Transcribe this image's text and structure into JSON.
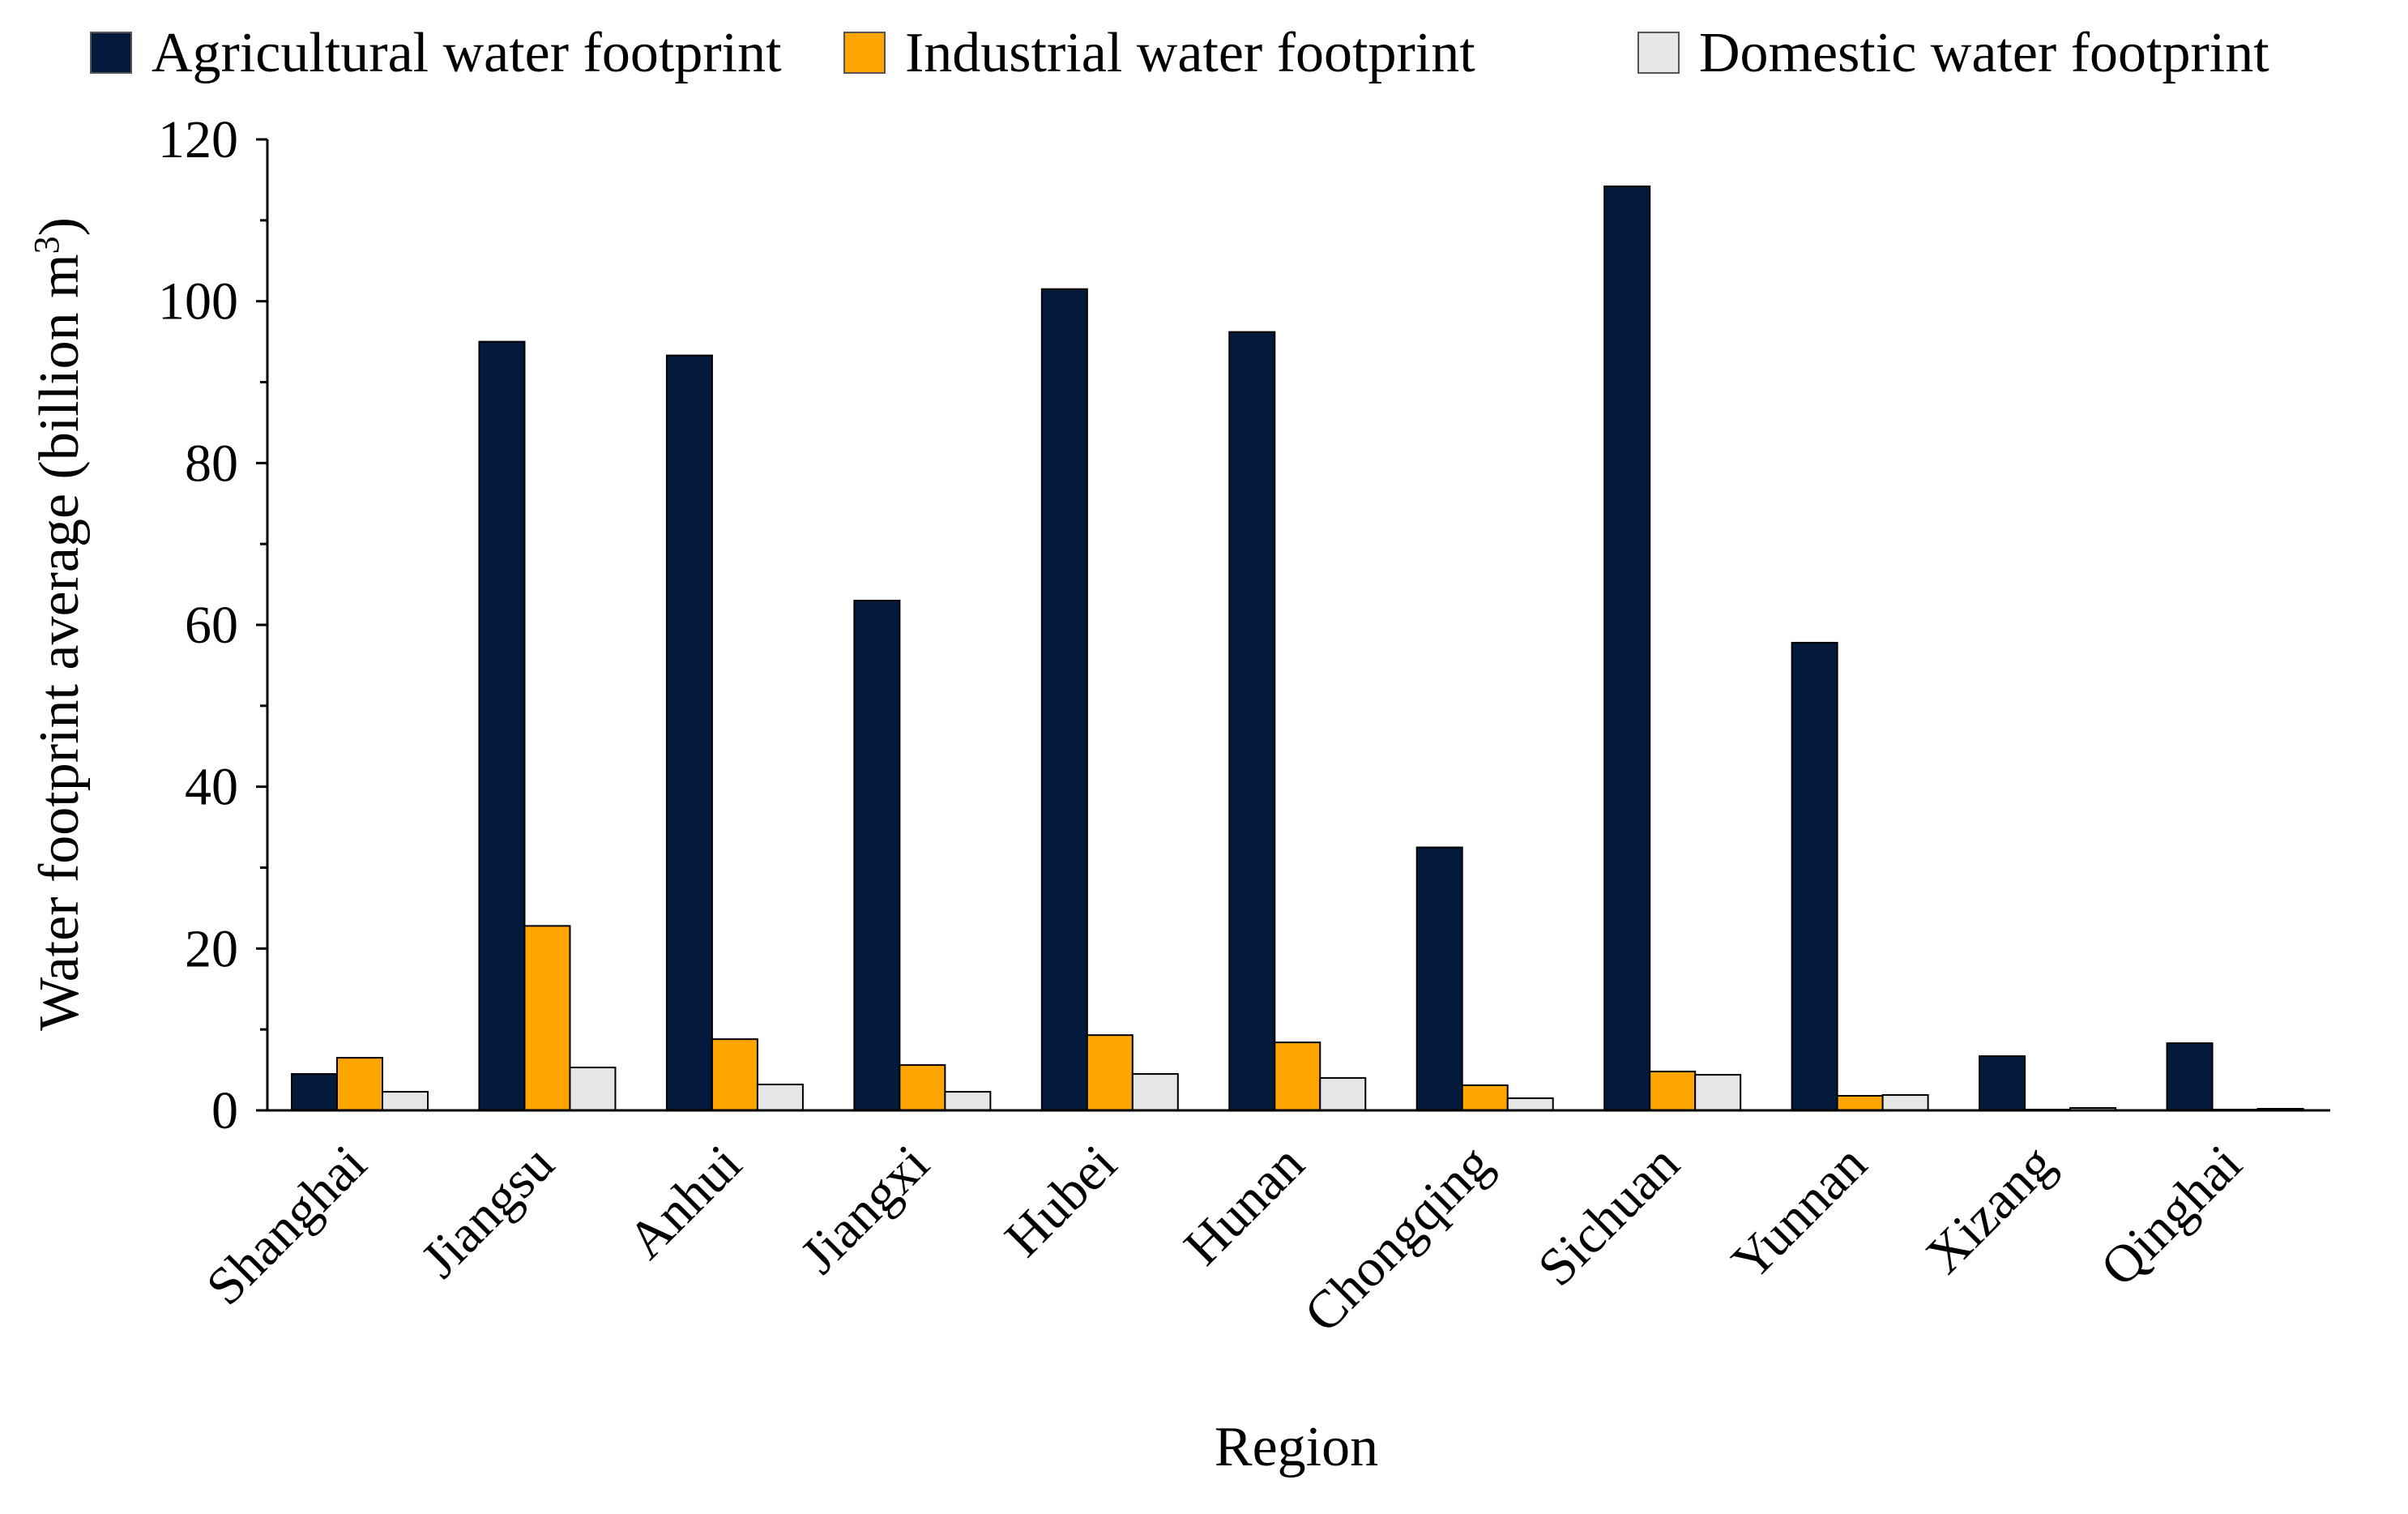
{
  "chart_data": {
    "type": "bar",
    "categories": [
      "Shanghai",
      "Jiangsu",
      "Anhui",
      "Jiangxi",
      "Hubei",
      "Hunan",
      "Chongqing",
      "Sichuan",
      "Yunnan",
      "Xizang",
      "Qinghai"
    ],
    "series": [
      {
        "name": "Agricultural water footprint",
        "color": "#041a3d",
        "values": [
          4.5,
          95,
          93.3,
          63,
          101.5,
          96.2,
          32.5,
          114.2,
          57.8,
          6.7,
          8.3
        ]
      },
      {
        "name": "Industrial water footprint",
        "color": "#ffa500",
        "values": [
          6.5,
          22.8,
          8.8,
          5.6,
          9.3,
          8.4,
          3.1,
          4.8,
          1.8,
          0.1,
          0.1
        ]
      },
      {
        "name": "Domestic water footprint",
        "color": "#e6e6e6",
        "values": [
          2.3,
          5.3,
          3.2,
          2.3,
          4.5,
          4.0,
          1.5,
          4.4,
          1.9,
          0.3,
          0.2
        ]
      }
    ],
    "title": "",
    "xlabel": "Region",
    "ylabel": "Water footprint average (billion m",
    "ylabel_superscript": "3",
    "ylabel_close": ")",
    "ylim": [
      0,
      120
    ],
    "yticks": [
      0,
      20,
      40,
      60,
      80,
      100,
      120
    ],
    "legend_position": "top",
    "grid": false
  }
}
